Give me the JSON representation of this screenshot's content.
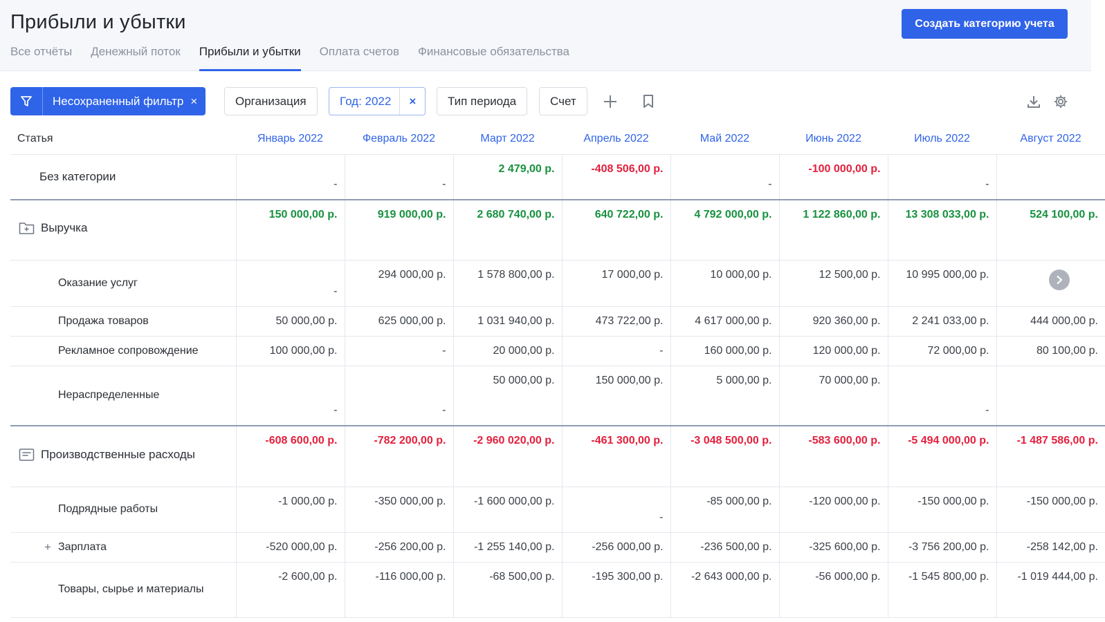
{
  "header": {
    "title": "Прибыли и убытки",
    "create_button": "Создать категорию учета",
    "tabs": [
      {
        "label": "Все отчёты"
      },
      {
        "label": "Денежный поток"
      },
      {
        "label": "Прибыли и убытки"
      },
      {
        "label": "Оплата счетов"
      },
      {
        "label": "Финансовые обязательства"
      }
    ],
    "active_tab": "Прибыли и убытки"
  },
  "toolbar": {
    "filter_label": "Несохраненный фильтр",
    "filter_clear": "×",
    "org_chip": "Организация",
    "year_chip": "Год: 2022",
    "year_clear": "×",
    "period_chip": "Тип периода",
    "account_chip": "Счет",
    "icons": [
      "filter-icon",
      "add-icon",
      "bookmark-icon",
      "download-icon",
      "gear-icon"
    ]
  },
  "table": {
    "article_header": "Статья",
    "months": [
      "Январь 2022",
      "Февраль 2022",
      "Март 2022",
      "Апрель 2022",
      "Май 2022",
      "Июнь 2022",
      "Июль 2022",
      "Август 2022"
    ],
    "rows": [
      {
        "name": "Без категории",
        "level": "cat",
        "values": [
          "-",
          "-",
          "2 479,00 р.",
          "-408 506,00 р.",
          "-",
          "-100 000,00 р.",
          "-",
          ""
        ]
      },
      {
        "name": "Выручка",
        "level": "group",
        "icon": "folder-icon",
        "values": [
          "150 000,00 р.",
          "919 000,00 р.",
          "2 680 740,00 р.",
          "640 722,00 р.",
          "4 792 000,00 р.",
          "1 122 860,00 р.",
          "13 308 033,00 р.",
          "524 100,00 р."
        ]
      },
      {
        "name": "Оказание услуг",
        "level": "sub",
        "values": [
          "-",
          "294 000,00 р.",
          "1 578 800,00 р.",
          "17 000,00 р.",
          "10 000,00 р.",
          "12 500,00 р.",
          "10 995 000,00 р.",
          ""
        ]
      },
      {
        "name": "Продажа товаров",
        "level": "sub",
        "values": [
          "50 000,00 р.",
          "625 000,00 р.",
          "1 031 940,00 р.",
          "473 722,00 р.",
          "4 617 000,00 р.",
          "920 360,00 р.",
          "2 241 033,00 р.",
          "444 000,00 р."
        ]
      },
      {
        "name": "Рекламное сопровождение",
        "level": "sub",
        "values": [
          "100 000,00 р.",
          "-",
          "20 000,00 р.",
          "-",
          "160 000,00 р.",
          "120 000,00 р.",
          "72 000,00 р.",
          "80 100,00 р."
        ]
      },
      {
        "name": "Нераспределенные",
        "level": "sub",
        "values": [
          "-",
          "-",
          "50 000,00 р.",
          "150 000,00 р.",
          "5 000,00 р.",
          "70 000,00 р.",
          "-",
          ""
        ]
      },
      {
        "name": "Производственные расходы",
        "level": "group",
        "icon": "document-list-icon",
        "values": [
          "-608 600,00 р.",
          "-782 200,00 р.",
          "-2 960 020,00 р.",
          "-461 300,00 р.",
          "-3 048 500,00 р.",
          "-583 600,00 р.",
          "-5 494 000,00 р.",
          "-1 487 586,00 р."
        ]
      },
      {
        "name": "Подрядные работы",
        "level": "sub",
        "values": [
          "-1 000,00 р.",
          "-350 000,00 р.",
          "-1 600 000,00 р.",
          "-",
          "-85 000,00 р.",
          "-120 000,00 р.",
          "-150 000,00 р.",
          "-150 000,00 р."
        ]
      },
      {
        "name": "Зарплата",
        "level": "sub",
        "expander": "+",
        "values": [
          "-520 000,00 р.",
          "-256 200,00 р.",
          "-1 255 140,00 р.",
          "-256 000,00 р.",
          "-236 500,00 р.",
          "-325 600,00 р.",
          "-3 756 200,00 р.",
          "-258 142,00 р."
        ]
      },
      {
        "name": "Товары, сырье и материалы",
        "level": "sub",
        "values": [
          "-2 600,00 р.",
          "-116 000,00 р.",
          "-68 500,00 р.",
          "-195 300,00 р.",
          "-2 643 000,00 р.",
          "-56 000,00 р.",
          "-1 545 800,00 р.",
          "-1 019 444,00 р."
        ]
      }
    ]
  },
  "colors": {
    "accent": "#2f63e8",
    "positive": "#17913f",
    "negative": "#e3203d"
  }
}
